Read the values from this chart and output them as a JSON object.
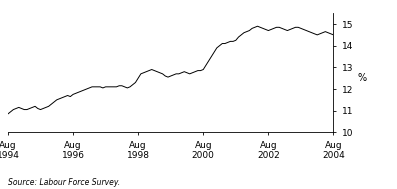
{
  "title": "",
  "ylabel": "%",
  "source": "Source: Labour Force Survey.",
  "ylim": [
    10,
    15.5
  ],
  "yticks": [
    10,
    11,
    12,
    13,
    14,
    15
  ],
  "xtick_labels": [
    "Aug\n1994",
    "Aug\n1996",
    "Aug\n1998",
    "Aug\n2000",
    "Aug\n2002",
    "Aug\n2004"
  ],
  "xtick_positions": [
    0,
    24,
    48,
    72,
    96,
    120
  ],
  "line_color": "#000000",
  "background_color": "#ffffff",
  "data_points": [
    0,
    1,
    2,
    3,
    4,
    5,
    6,
    7,
    8,
    9,
    10,
    11,
    12,
    13,
    14,
    15,
    16,
    17,
    18,
    19,
    20,
    21,
    22,
    23,
    24,
    25,
    26,
    27,
    28,
    29,
    30,
    31,
    32,
    33,
    34,
    35,
    36,
    37,
    38,
    39,
    40,
    41,
    42,
    43,
    44,
    45,
    46,
    47,
    48,
    49,
    50,
    51,
    52,
    53,
    54,
    55,
    56,
    57,
    58,
    59,
    60,
    61,
    62,
    63,
    64,
    65,
    66,
    67,
    68,
    69,
    70,
    71,
    72,
    73,
    74,
    75,
    76,
    77,
    78,
    79,
    80,
    81,
    82,
    83,
    84,
    85,
    86,
    87,
    88,
    89,
    90,
    91,
    92,
    93,
    94,
    95,
    96,
    97,
    98,
    99,
    100,
    101,
    102,
    103,
    104,
    105,
    106,
    107,
    108,
    109,
    110,
    111,
    112,
    113,
    114,
    115,
    116,
    117,
    118,
    119,
    120
  ],
  "values": [
    10.85,
    10.95,
    11.05,
    11.1,
    11.15,
    11.1,
    11.05,
    11.05,
    11.1,
    11.15,
    11.2,
    11.1,
    11.05,
    11.1,
    11.15,
    11.2,
    11.3,
    11.4,
    11.5,
    11.55,
    11.6,
    11.65,
    11.7,
    11.65,
    11.75,
    11.8,
    11.85,
    11.9,
    11.95,
    12.0,
    12.05,
    12.1,
    12.1,
    12.1,
    12.1,
    12.05,
    12.1,
    12.1,
    12.1,
    12.1,
    12.1,
    12.15,
    12.15,
    12.1,
    12.05,
    12.1,
    12.2,
    12.3,
    12.5,
    12.7,
    12.75,
    12.8,
    12.85,
    12.9,
    12.85,
    12.8,
    12.75,
    12.7,
    12.6,
    12.55,
    12.6,
    12.65,
    12.7,
    12.7,
    12.75,
    12.8,
    12.75,
    12.7,
    12.75,
    12.8,
    12.85,
    12.85,
    12.9,
    13.1,
    13.3,
    13.5,
    13.7,
    13.9,
    14.0,
    14.1,
    14.1,
    14.15,
    14.2,
    14.2,
    14.25,
    14.4,
    14.5,
    14.6,
    14.65,
    14.7,
    14.8,
    14.85,
    14.9,
    14.85,
    14.8,
    14.75,
    14.7,
    14.75,
    14.8,
    14.85,
    14.85,
    14.8,
    14.75,
    14.7,
    14.75,
    14.8,
    14.85,
    14.85,
    14.8,
    14.75,
    14.7,
    14.65,
    14.6,
    14.55,
    14.5,
    14.55,
    14.6,
    14.65,
    14.6,
    14.55,
    14.5
  ]
}
